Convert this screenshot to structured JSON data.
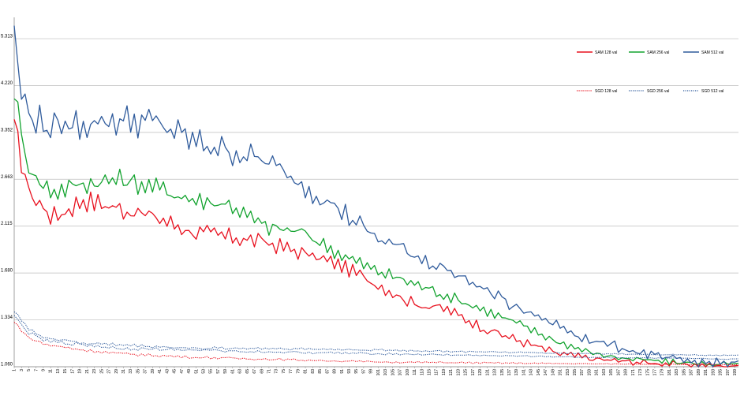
{
  "chart_data": {
    "type": "line",
    "title": "",
    "xlabel": "",
    "ylabel": "",
    "y_scale": "log",
    "ylim": [
      1.06,
      5.9
    ],
    "y_ticks": [
      "5.313",
      "4.220",
      "3.352",
      "2.663",
      "2.115",
      "1.680",
      "1.334",
      "1.060"
    ],
    "y_tick_values": [
      5.313,
      4.22,
      3.352,
      2.663,
      2.115,
      1.68,
      1.334,
      1.06
    ],
    "x_range": [
      1,
      200
    ],
    "x_ticks": [
      1,
      3,
      5,
      7,
      9,
      11,
      13,
      15,
      17,
      19,
      21,
      23,
      25,
      27,
      29,
      31,
      33,
      35,
      37,
      39,
      41,
      43,
      45,
      47,
      49,
      51,
      53,
      55,
      57,
      59,
      61,
      63,
      65,
      67,
      69,
      71,
      73,
      75,
      77,
      79,
      81,
      83,
      85,
      87,
      89,
      91,
      93,
      95,
      97,
      99,
      101,
      103,
      105,
      107,
      109,
      111,
      113,
      115,
      117,
      119,
      121,
      123,
      125,
      127,
      129,
      131,
      133,
      135,
      137,
      139,
      141,
      143,
      145,
      147,
      149,
      151,
      153,
      155,
      157,
      159,
      161,
      163,
      165,
      167,
      169,
      171,
      173,
      175,
      177,
      179,
      181,
      183,
      185,
      187,
      189,
      191,
      193,
      195,
      197,
      199
    ],
    "grid": true,
    "legend_position": "top-right",
    "series": [
      {
        "name": "SAM 128 val",
        "color": "#e8101e",
        "style": "solid",
        "keypoints": [
          [
            1,
            3.5
          ],
          [
            3,
            2.9
          ],
          [
            5,
            2.5
          ],
          [
            8,
            2.35
          ],
          [
            12,
            2.2
          ],
          [
            20,
            2.4
          ],
          [
            30,
            2.3
          ],
          [
            40,
            2.2
          ],
          [
            50,
            2.05
          ],
          [
            60,
            2.0
          ],
          [
            70,
            1.95
          ],
          [
            80,
            1.85
          ],
          [
            90,
            1.75
          ],
          [
            100,
            1.6
          ],
          [
            110,
            1.45
          ],
          [
            120,
            1.4
          ],
          [
            130,
            1.28
          ],
          [
            140,
            1.2
          ],
          [
            150,
            1.13
          ],
          [
            160,
            1.1
          ],
          [
            170,
            1.085
          ],
          [
            180,
            1.075
          ],
          [
            190,
            1.065
          ],
          [
            200,
            1.06
          ]
        ],
        "amp": 0.045
      },
      {
        "name": "SAM 256 val",
        "color": "#12a32e",
        "style": "solid",
        "keypoints": [
          [
            1,
            4.15
          ],
          [
            3,
            3.3
          ],
          [
            5,
            2.85
          ],
          [
            8,
            2.6
          ],
          [
            12,
            2.5
          ],
          [
            20,
            2.6
          ],
          [
            30,
            2.65
          ],
          [
            40,
            2.55
          ],
          [
            50,
            2.4
          ],
          [
            60,
            2.35
          ],
          [
            70,
            2.1
          ],
          [
            80,
            2.05
          ],
          [
            90,
            1.85
          ],
          [
            100,
            1.7
          ],
          [
            110,
            1.6
          ],
          [
            120,
            1.5
          ],
          [
            130,
            1.4
          ],
          [
            140,
            1.3
          ],
          [
            150,
            1.2
          ],
          [
            160,
            1.13
          ],
          [
            170,
            1.1
          ],
          [
            180,
            1.085
          ],
          [
            190,
            1.075
          ],
          [
            200,
            1.07
          ]
        ],
        "amp": 0.045
      },
      {
        "name": "SAM 512 val",
        "color": "#2f5b9c",
        "style": "solid",
        "keypoints": [
          [
            1,
            5.9
          ],
          [
            2,
            4.4
          ],
          [
            4,
            3.8
          ],
          [
            8,
            3.5
          ],
          [
            12,
            3.4
          ],
          [
            20,
            3.5
          ],
          [
            30,
            3.55
          ],
          [
            40,
            3.5
          ],
          [
            50,
            3.2
          ],
          [
            60,
            3.05
          ],
          [
            70,
            2.9
          ],
          [
            80,
            2.6
          ],
          [
            90,
            2.3
          ],
          [
            100,
            2.0
          ],
          [
            110,
            1.85
          ],
          [
            120,
            1.7
          ],
          [
            130,
            1.55
          ],
          [
            140,
            1.4
          ],
          [
            150,
            1.3
          ],
          [
            160,
            1.2
          ],
          [
            170,
            1.15
          ],
          [
            180,
            1.1
          ],
          [
            190,
            1.08
          ],
          [
            200,
            1.075
          ]
        ],
        "amp": 0.07
      },
      {
        "name": "SGD 128 val",
        "color": "#e8101e",
        "style": "dotted",
        "keypoints": [
          [
            1,
            1.32
          ],
          [
            5,
            1.22
          ],
          [
            10,
            1.18
          ],
          [
            20,
            1.15
          ],
          [
            30,
            1.13
          ],
          [
            50,
            1.11
          ],
          [
            70,
            1.1
          ],
          [
            100,
            1.085
          ],
          [
            130,
            1.08
          ],
          [
            160,
            1.075
          ],
          [
            200,
            1.07
          ]
        ],
        "amp": 0.006
      },
      {
        "name": "SGD 256 val",
        "color": "#2f5b9c",
        "style": "dotted",
        "keypoints": [
          [
            1,
            1.36
          ],
          [
            5,
            1.25
          ],
          [
            10,
            1.2
          ],
          [
            20,
            1.18
          ],
          [
            30,
            1.16
          ],
          [
            50,
            1.15
          ],
          [
            70,
            1.14
          ],
          [
            100,
            1.13
          ],
          [
            130,
            1.12
          ],
          [
            160,
            1.11
          ],
          [
            200,
            1.1
          ]
        ],
        "amp": 0.007
      },
      {
        "name": "SGD 512 val",
        "color": "#2f5b9c",
        "style": "dotted",
        "keypoints": [
          [
            1,
            1.4
          ],
          [
            5,
            1.27
          ],
          [
            10,
            1.22
          ],
          [
            20,
            1.19
          ],
          [
            30,
            1.18
          ],
          [
            50,
            1.16
          ],
          [
            70,
            1.16
          ],
          [
            100,
            1.15
          ],
          [
            130,
            1.14
          ],
          [
            160,
            1.13
          ],
          [
            200,
            1.12
          ]
        ],
        "amp": 0.007
      }
    ]
  }
}
